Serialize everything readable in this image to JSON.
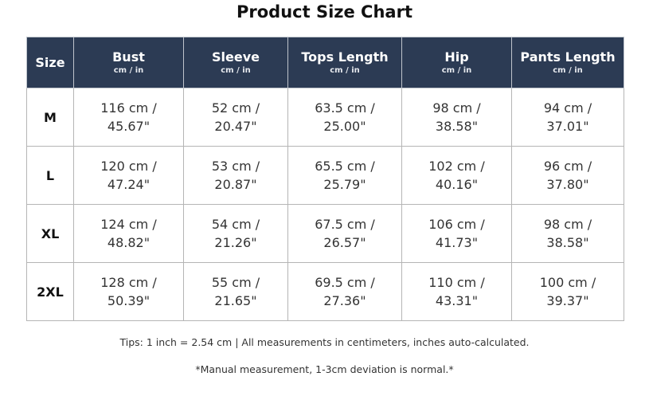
{
  "title": "Product Size Chart",
  "table": {
    "columns": [
      {
        "name": "Size"
      },
      {
        "name": "Bust",
        "unit": "cm / in"
      },
      {
        "name": "Sleeve",
        "unit": "cm / in"
      },
      {
        "name": "Tops Length",
        "unit": "cm / in"
      },
      {
        "name": "Hip",
        "unit": "cm / in"
      },
      {
        "name": "Pants Length",
        "unit": "cm / in"
      }
    ],
    "rows": [
      {
        "size": "M",
        "cells": [
          {
            "cm": "116 cm /",
            "in": "45.67\""
          },
          {
            "cm": "52 cm /",
            "in": "20.47\""
          },
          {
            "cm": "63.5 cm /",
            "in": "25.00\""
          },
          {
            "cm": "98 cm /",
            "in": "38.58\""
          },
          {
            "cm": "94 cm /",
            "in": "37.01\""
          }
        ]
      },
      {
        "size": "L",
        "cells": [
          {
            "cm": "120 cm /",
            "in": "47.24\""
          },
          {
            "cm": "53 cm /",
            "in": "20.87\""
          },
          {
            "cm": "65.5 cm /",
            "in": "25.79\""
          },
          {
            "cm": "102 cm /",
            "in": "40.16\""
          },
          {
            "cm": "96 cm /",
            "in": "37.80\""
          }
        ]
      },
      {
        "size": "XL",
        "cells": [
          {
            "cm": "124 cm /",
            "in": "48.82\""
          },
          {
            "cm": "54 cm /",
            "in": "21.26\""
          },
          {
            "cm": "67.5 cm /",
            "in": "26.57\""
          },
          {
            "cm": "106 cm /",
            "in": "41.73\""
          },
          {
            "cm": "98 cm /",
            "in": "38.58\""
          }
        ]
      },
      {
        "size": "2XL",
        "cells": [
          {
            "cm": "128 cm /",
            "in": "50.39\""
          },
          {
            "cm": "55 cm /",
            "in": "21.65\""
          },
          {
            "cm": "69.5 cm /",
            "in": "27.36\""
          },
          {
            "cm": "110 cm /",
            "in": "43.31\""
          },
          {
            "cm": "100 cm /",
            "in": "39.37\""
          }
        ]
      }
    ]
  },
  "tips": "Tips: 1 inch = 2.54 cm | All measurements in centimeters, inches auto-calculated.",
  "note": "*Manual measurement, 1-3cm deviation is normal.*"
}
